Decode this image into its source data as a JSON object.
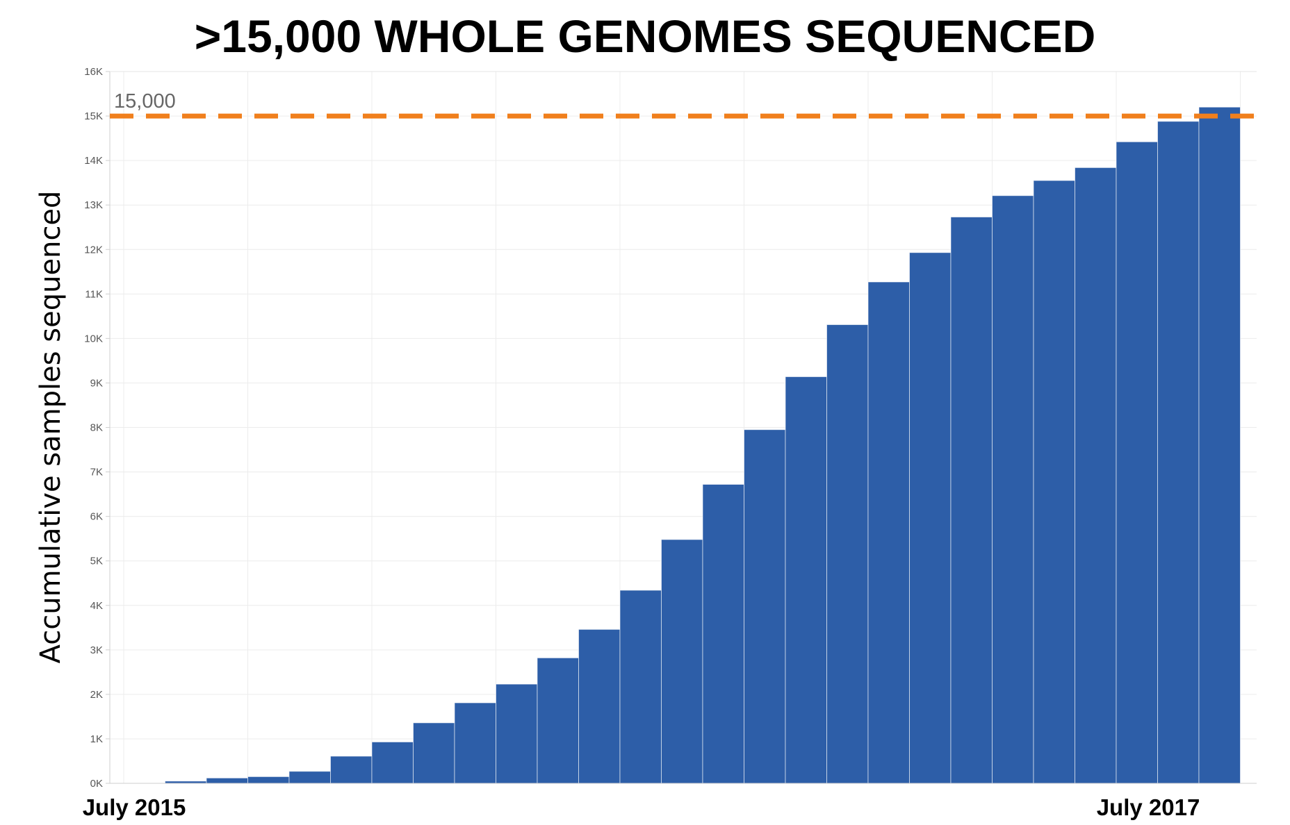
{
  "chart_data": {
    "type": "bar",
    "title": ">15,000 WHOLE GENOMES SEQUENCED",
    "ylabel": "Accumulative samples sequenced",
    "xlabel": "",
    "x_tick_labels": [
      "July 2015",
      "July 2017"
    ],
    "ylim": [
      0,
      16000
    ],
    "y_ticks": [
      {
        "value": 0,
        "label": "0K"
      },
      {
        "value": 1000,
        "label": "1K"
      },
      {
        "value": 2000,
        "label": "2K"
      },
      {
        "value": 3000,
        "label": "3K"
      },
      {
        "value": 4000,
        "label": "4K"
      },
      {
        "value": 5000,
        "label": "5K"
      },
      {
        "value": 6000,
        "label": "6K"
      },
      {
        "value": 7000,
        "label": "7K"
      },
      {
        "value": 8000,
        "label": "8K"
      },
      {
        "value": 9000,
        "label": "9K"
      },
      {
        "value": 10000,
        "label": "10K"
      },
      {
        "value": 11000,
        "label": "11K"
      },
      {
        "value": 12000,
        "label": "12K"
      },
      {
        "value": 13000,
        "label": "13K"
      },
      {
        "value": 14000,
        "label": "14K"
      },
      {
        "value": 15000,
        "label": "15K"
      },
      {
        "value": 16000,
        "label": "16K"
      }
    ],
    "values": [
      0,
      50,
      120,
      150,
      270,
      610,
      930,
      1360,
      1810,
      2230,
      2820,
      3460,
      4340,
      5480,
      6720,
      7950,
      9140,
      10310,
      11270,
      11930,
      12730,
      13210,
      13550,
      13840,
      14420,
      14880,
      15200
    ],
    "reference_line": {
      "value": 15000,
      "label": "15,000",
      "color": "#f07f1c",
      "style": "dashed"
    },
    "bar_color": "#2d5ea8",
    "grid": true
  }
}
